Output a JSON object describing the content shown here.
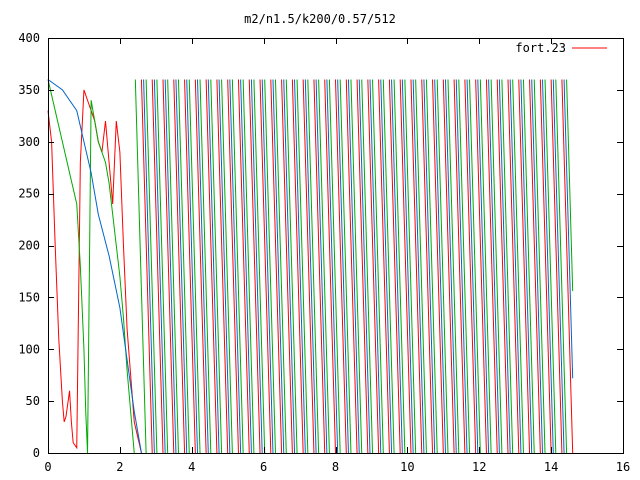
{
  "chart_data": {
    "type": "line",
    "title": "m2/n1.5/k200/0.57/512",
    "xlabel": "",
    "ylabel": "",
    "xlim": [
      0,
      16
    ],
    "ylim": [
      0,
      400
    ],
    "xticks": [
      0,
      2,
      4,
      6,
      8,
      10,
      12,
      14,
      16
    ],
    "yticks": [
      0,
      50,
      100,
      150,
      200,
      250,
      300,
      350,
      400
    ],
    "grid": false,
    "legend_position": "top-right",
    "legend": [
      {
        "label": "fort.23",
        "color": "#ff0000"
      }
    ],
    "x_end": 14.6,
    "series": [
      {
        "name": "fort.23",
        "color": "#ff0000",
        "note_values": "angle wraps 0–360; unwrapped envelope anchors (x, y)",
        "anchors": [
          [
            0.0,
            330
          ],
          [
            0.1,
            300
          ],
          [
            0.2,
            200
          ],
          [
            0.3,
            110
          ],
          [
            0.4,
            50
          ],
          [
            0.45,
            30
          ],
          [
            0.5,
            35
          ],
          [
            0.6,
            60
          ],
          [
            0.65,
            30
          ],
          [
            0.7,
            10
          ],
          [
            0.8,
            5
          ],
          [
            0.9,
            280
          ],
          [
            1.0,
            350
          ],
          [
            1.1,
            340
          ],
          [
            1.2,
            330
          ],
          [
            1.3,
            320
          ],
          [
            1.4,
            300
          ],
          [
            1.5,
            290
          ],
          [
            1.6,
            320
          ],
          [
            1.7,
            280
          ],
          [
            1.8,
            240
          ],
          [
            1.9,
            320
          ],
          [
            2.0,
            290
          ],
          [
            2.1,
            200
          ],
          [
            2.2,
            120
          ],
          [
            2.4,
            30
          ],
          [
            2.6,
            0
          ]
        ],
        "after_x": 2.6,
        "wrap_period": 0.3,
        "phase_offset": 0.0
      },
      {
        "name": "",
        "color": "#00aa00",
        "anchors": [
          [
            0.0,
            360
          ],
          [
            0.2,
            330
          ],
          [
            0.4,
            300
          ],
          [
            0.6,
            270
          ],
          [
            0.8,
            240
          ],
          [
            0.9,
            180
          ],
          [
            1.0,
            100
          ],
          [
            1.05,
            40
          ],
          [
            1.1,
            0
          ],
          [
            1.2,
            340
          ],
          [
            1.3,
            320
          ],
          [
            1.4,
            300
          ],
          [
            1.5,
            290
          ],
          [
            1.6,
            280
          ],
          [
            1.7,
            260
          ],
          [
            1.8,
            230
          ],
          [
            1.9,
            200
          ],
          [
            2.0,
            170
          ],
          [
            2.1,
            130
          ],
          [
            2.2,
            80
          ],
          [
            2.3,
            40
          ],
          [
            2.4,
            0
          ]
        ],
        "after_x": 2.4,
        "wrap_period": 0.3,
        "phase_offset": 0.1
      },
      {
        "name": "",
        "color": "#0066cc",
        "anchors": [
          [
            0.0,
            360
          ],
          [
            0.4,
            350
          ],
          [
            0.8,
            330
          ],
          [
            1.2,
            270
          ],
          [
            1.4,
            230
          ],
          [
            1.7,
            190
          ],
          [
            2.0,
            140
          ],
          [
            2.2,
            90
          ],
          [
            2.4,
            40
          ],
          [
            2.6,
            0
          ]
        ],
        "after_x": 2.6,
        "wrap_period": 0.3,
        "phase_offset": 0.2
      }
    ]
  }
}
